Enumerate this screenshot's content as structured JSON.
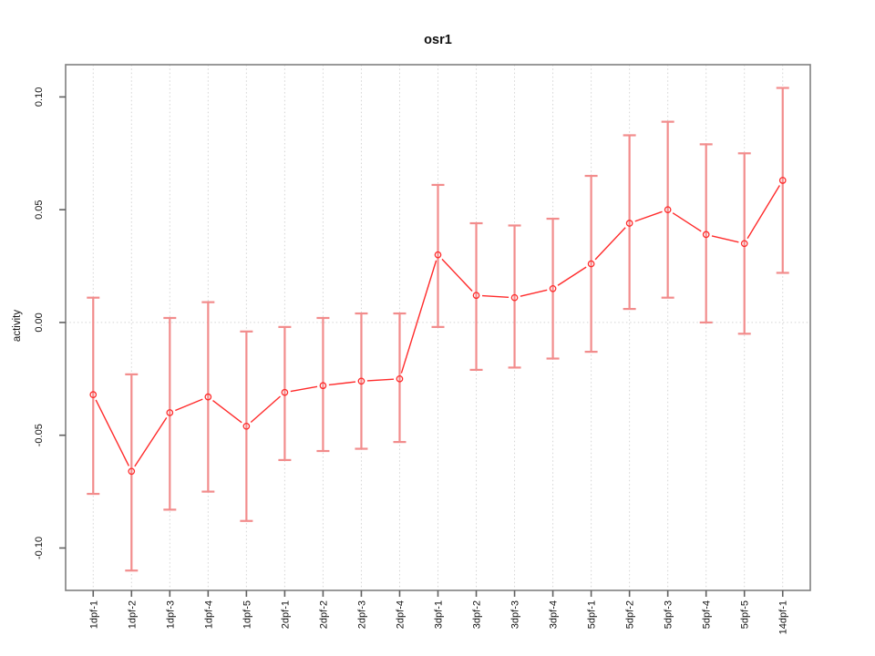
{
  "page": {
    "background": "#ffffff"
  },
  "chart_data": {
    "type": "line",
    "title": "osr1",
    "xlabel": "",
    "ylabel": "activity",
    "legend_position": "none",
    "categories": [
      "1dpf-1",
      "1dpf-2",
      "1dpf-3",
      "1dpf-4",
      "1dpf-5",
      "2dpf-1",
      "2dpf-2",
      "2dpf-3",
      "2dpf-4",
      "3dpf-1",
      "3dpf-2",
      "3dpf-3",
      "3dpf-4",
      "5dpf-1",
      "5dpf-2",
      "5dpf-3",
      "5dpf-4",
      "5dpf-5",
      "14dpf-1"
    ],
    "series": [
      {
        "name": "osr1",
        "values": [
          -0.032,
          -0.066,
          -0.04,
          -0.033,
          -0.046,
          -0.031,
          -0.028,
          -0.026,
          -0.025,
          0.03,
          0.012,
          0.011,
          0.015,
          0.026,
          0.044,
          0.05,
          0.039,
          0.035,
          0.063
        ],
        "ci_lower": [
          -0.076,
          -0.11,
          -0.083,
          -0.075,
          -0.088,
          -0.061,
          -0.057,
          -0.056,
          -0.053,
          -0.002,
          -0.021,
          -0.02,
          -0.016,
          -0.013,
          0.006,
          0.011,
          0.0,
          -0.005,
          0.022
        ],
        "ci_upper": [
          0.011,
          -0.023,
          0.002,
          0.009,
          -0.004,
          -0.002,
          0.002,
          0.004,
          0.004,
          0.061,
          0.044,
          0.043,
          0.046,
          0.065,
          0.083,
          0.089,
          0.079,
          0.075,
          0.104
        ]
      }
    ],
    "y_tick_values": [
      -0.1,
      -0.05,
      0.0,
      0.05,
      0.1
    ],
    "y_tick_labels": [
      "-0.10",
      "-0.05",
      "0.00",
      "0.05",
      "0.10"
    ],
    "ylim": [
      -0.1188,
      0.1143
    ],
    "grid": {
      "vertical_per_category": true,
      "horizontal_zero_line": true,
      "style": "dotted"
    },
    "tick_label_orientation": "vertical",
    "colors": {
      "line": "#ff2b2b",
      "point": "#ff2b2b",
      "error_bar": "#f28c8c",
      "grid": "#d4d4d4",
      "axis": "#808080",
      "tick": "#606060",
      "text": "#111111"
    }
  }
}
